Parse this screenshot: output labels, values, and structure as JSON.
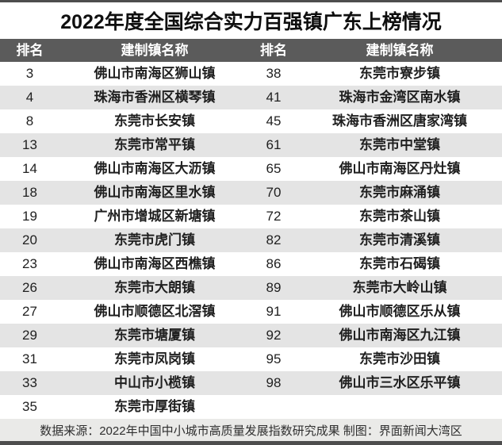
{
  "title": "2022年度全国综合实力百强镇广东上榜情况",
  "table": {
    "headers": [
      "排名",
      "建制镇名称",
      "排名",
      "建制镇名称"
    ],
    "rows": [
      {
        "rank_left": "3",
        "town_left": "佛山市南海区狮山镇",
        "rank_right": "38",
        "town_right": "东莞市寮步镇"
      },
      {
        "rank_left": "4",
        "town_left": "珠海市香洲区横琴镇",
        "rank_right": "41",
        "town_right": "珠海市金湾区南水镇"
      },
      {
        "rank_left": "8",
        "town_left": "东莞市长安镇",
        "rank_right": "45",
        "town_right": "珠海市香洲区唐家湾镇"
      },
      {
        "rank_left": "13",
        "town_left": "东莞市常平镇",
        "rank_right": "61",
        "town_right": "东莞市中堂镇"
      },
      {
        "rank_left": "14",
        "town_left": "佛山市南海区大沥镇",
        "rank_right": "65",
        "town_right": "佛山市南海区丹灶镇"
      },
      {
        "rank_left": "18",
        "town_left": "佛山市南海区里水镇",
        "rank_right": "70",
        "town_right": "东莞市麻涌镇"
      },
      {
        "rank_left": "19",
        "town_left": "广州市增城区新塘镇",
        "rank_right": "72",
        "town_right": "东莞市茶山镇"
      },
      {
        "rank_left": "20",
        "town_left": "东莞市虎门镇",
        "rank_right": "82",
        "town_right": "东莞市清溪镇"
      },
      {
        "rank_left": "23",
        "town_left": "佛山市南海区西樵镇",
        "rank_right": "86",
        "town_right": "东莞市石碣镇"
      },
      {
        "rank_left": "26",
        "town_left": "东莞市大朗镇",
        "rank_right": "89",
        "town_right": "东莞市大岭山镇"
      },
      {
        "rank_left": "27",
        "town_left": "佛山市顺德区北滘镇",
        "rank_right": "91",
        "town_right": "佛山市顺德区乐从镇"
      },
      {
        "rank_left": "29",
        "town_left": "东莞市塘厦镇",
        "rank_right": "92",
        "town_right": "佛山市南海区九江镇"
      },
      {
        "rank_left": "31",
        "town_left": "东莞市凤岗镇",
        "rank_right": "95",
        "town_right": "东莞市沙田镇"
      },
      {
        "rank_left": "33",
        "town_left": "中山市小榄镇",
        "rank_right": "98",
        "town_right": "佛山市三水区乐平镇"
      },
      {
        "rank_left": "35",
        "town_left": "东莞市厚街镇",
        "rank_right": "",
        "town_right": ""
      }
    ]
  },
  "footer": {
    "source_text": "数据来源：2022年中国中小城市高质量发展指数研究成果 制图：界面新闻大湾区"
  },
  "colors": {
    "header_bg": "#5b5b5b",
    "alt_row_bg": "#e4e4e4",
    "footer_bg": "#eaeae8",
    "border_strip": "#4d4d4d"
  }
}
